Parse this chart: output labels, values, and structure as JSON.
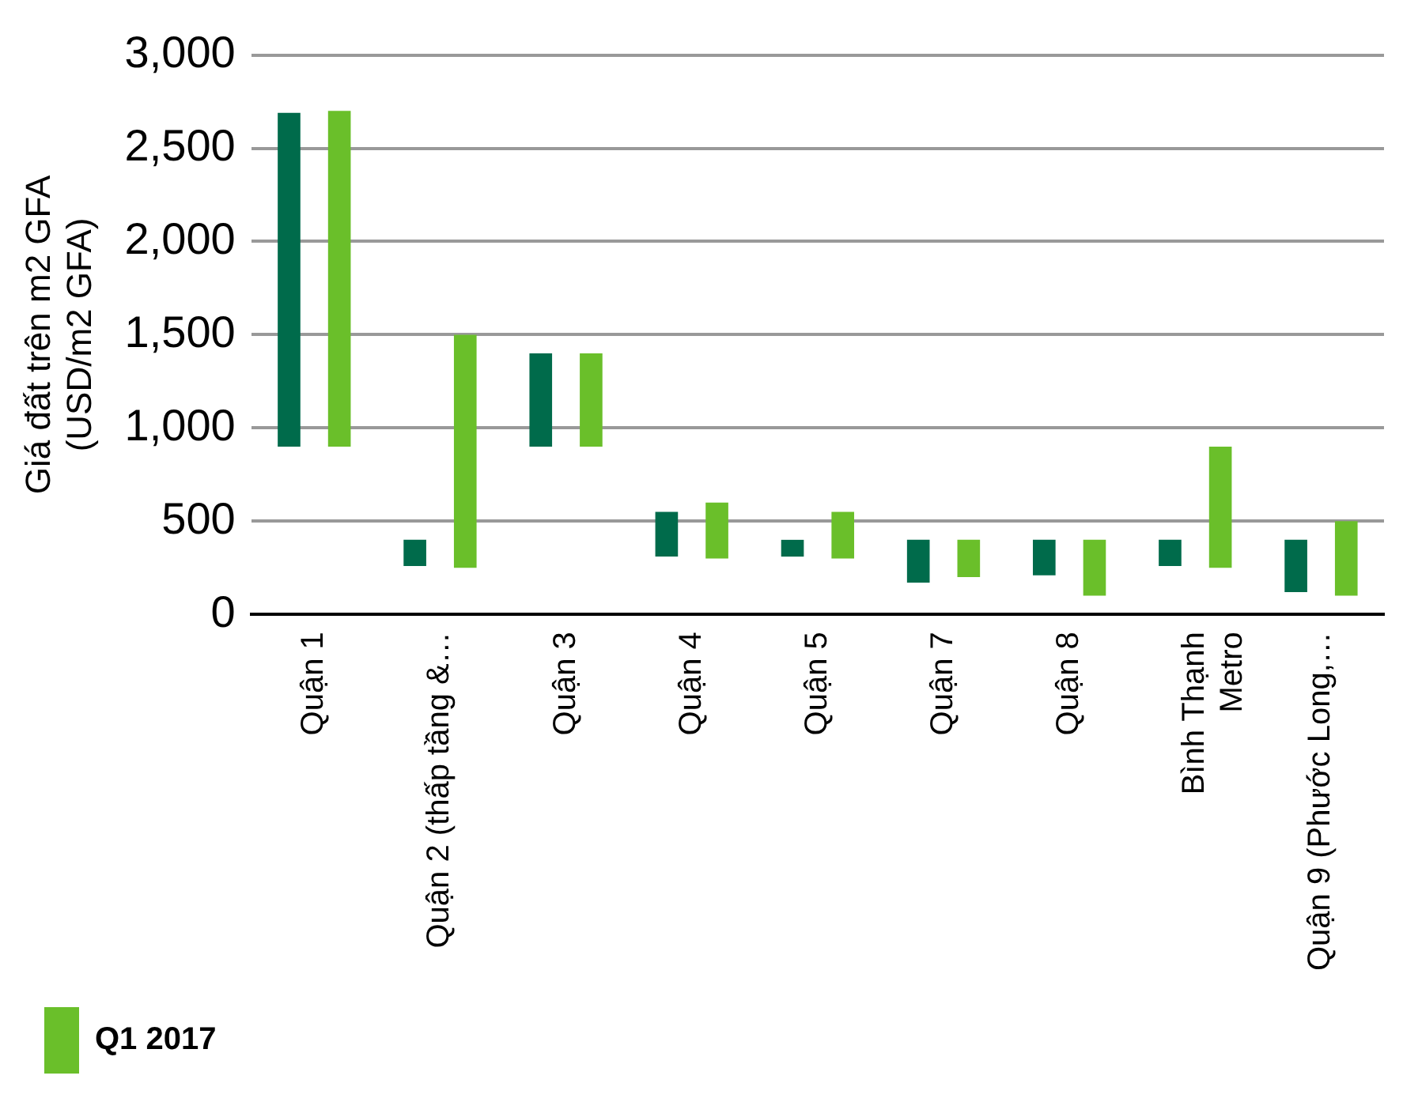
{
  "chart_data": {
    "type": "bar",
    "ylabel": "Giá đất trên m2 GFA\n(USD/m2 GFA)",
    "categories": [
      "Quận 1",
      "Quận 2 (thấp tầng &…",
      "Quận 3",
      "Quận 4",
      "Quận 5",
      "Quận 7",
      "Quận 8",
      "Bình Thạnh\nMetro",
      "Quận 9 (Phước Long,…"
    ],
    "series": [
      {
        "color": "#006b4b",
        "base": [
          900,
          260,
          900,
          310,
          310,
          170,
          210,
          260,
          120
        ],
        "values": [
          1790,
          140,
          500,
          240,
          90,
          230,
          190,
          140,
          280
        ]
      },
      {
        "name": "Q1 2017",
        "color": "#6abf2a",
        "base": [
          900,
          250,
          900,
          300,
          300,
          200,
          100,
          250,
          100
        ],
        "values": [
          1800,
          1250,
          500,
          300,
          250,
          200,
          300,
          650,
          400
        ]
      }
    ],
    "ylim": [
      0,
      3000
    ],
    "yticks": [
      {
        "value": 0,
        "label": "0"
      },
      {
        "value": 500,
        "label": "500"
      },
      {
        "value": 1000,
        "label": "1,000"
      },
      {
        "value": 1500,
        "label": "1,500"
      },
      {
        "value": 2000,
        "label": "2,000"
      },
      {
        "value": 2500,
        "label": "2,500"
      },
      {
        "value": 3000,
        "label": "3,000"
      }
    ],
    "grid": "y",
    "legend": "bottom left"
  }
}
